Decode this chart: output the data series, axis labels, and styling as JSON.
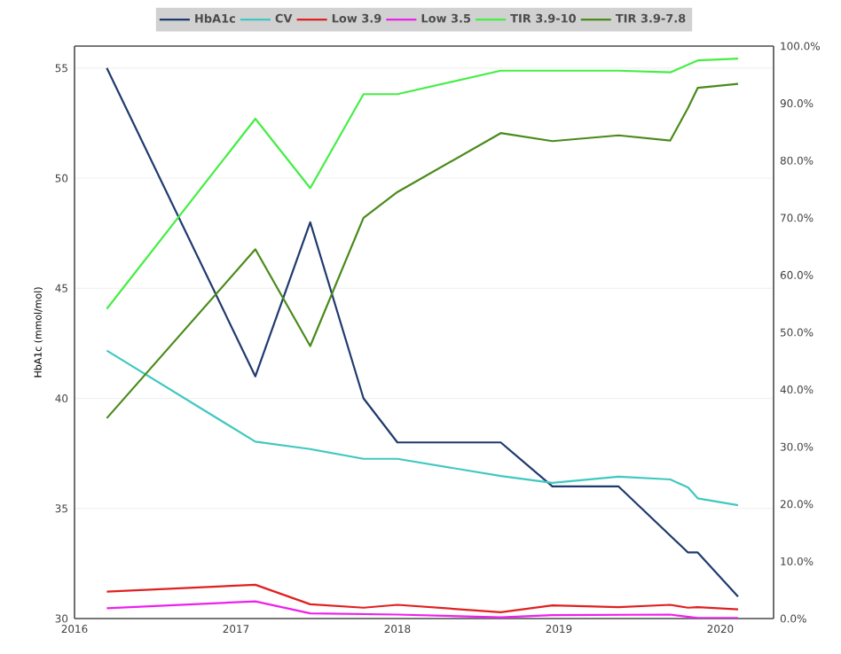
{
  "chart_data": {
    "type": "line",
    "ylabel": "HbA1c (mmol/mol)",
    "xlim": [
      2016,
      2020.33
    ],
    "xticks": [
      2016,
      2017,
      2018,
      2019,
      2020
    ],
    "ylim": [
      30,
      56
    ],
    "yticks": [
      30,
      35,
      40,
      45,
      50,
      55
    ],
    "y2lim": [
      0,
      100
    ],
    "y2ticks": [
      {
        "value": 0,
        "label": "0.0%"
      },
      {
        "value": 10,
        "label": "10.0%"
      },
      {
        "value": 20,
        "label": "20.0%"
      },
      {
        "value": 30,
        "label": "30.0%"
      },
      {
        "value": 40,
        "label": "40.0%"
      },
      {
        "value": 50,
        "label": "50.0%"
      },
      {
        "value": 60,
        "label": "60.0%"
      },
      {
        "value": 70,
        "label": "70.0%"
      },
      {
        "value": 80,
        "label": "80.0%"
      },
      {
        "value": 90,
        "label": "90.0%"
      },
      {
        "value": 100,
        "label": "100.0%"
      }
    ],
    "grid": "y",
    "legend": "top",
    "marker": "none",
    "line_style": "solid",
    "series": [
      {
        "name": "HbA1c",
        "color": "#1f3a6e",
        "x": [
          2016.2,
          2017.12,
          2017.46,
          2017.79,
          2018.0,
          2018.64,
          2018.96,
          2019.37,
          2019.8,
          2019.86,
          2020.11
        ],
        "values": [
          55,
          41,
          48,
          40,
          38,
          38,
          36,
          36,
          33,
          33,
          31
        ]
      },
      {
        "name": "CV",
        "color": "#40c8c0",
        "axis": "y2",
        "x": [
          2016.2,
          2017.12,
          2017.46,
          2017.79,
          2018.0,
          2018.64,
          2018.96,
          2019.37,
          2019.69,
          2019.8,
          2019.86,
          2020.11
        ],
        "values": [
          46.8,
          30.9,
          29.6,
          27.9,
          27.9,
          24.9,
          23.7,
          24.8,
          24.3,
          22.9,
          21.0,
          19.8
        ]
      },
      {
        "name": "Low 3.9",
        "color": "#e02020",
        "axis": "y2",
        "x": [
          2016.2,
          2017.12,
          2017.46,
          2017.79,
          2018.0,
          2018.64,
          2018.96,
          2019.37,
          2019.69,
          2019.8,
          2019.86,
          2020.11
        ],
        "values": [
          4.7,
          5.9,
          2.5,
          1.9,
          2.4,
          1.1,
          2.3,
          2.0,
          2.4,
          1.9,
          2.0,
          1.6
        ]
      },
      {
        "name": "Low 3.5",
        "color": "#ee20ee",
        "axis": "y2",
        "x": [
          2016.2,
          2017.12,
          2017.46,
          2018.0,
          2018.64,
          2018.96,
          2019.69,
          2019.86,
          2020.11
        ],
        "values": [
          1.8,
          3.0,
          0.9,
          0.7,
          0.2,
          0.6,
          0.7,
          0.1,
          0.1
        ]
      },
      {
        "name": "TIR 3.9-10",
        "color": "#44ee44",
        "axis": "y2",
        "x": [
          2016.2,
          2017.12,
          2017.46,
          2017.79,
          2018.0,
          2018.64,
          2019.37,
          2019.69,
          2019.86,
          2020.11
        ],
        "values": [
          54.1,
          87.3,
          75.2,
          91.6,
          91.6,
          95.7,
          95.7,
          95.4,
          97.5,
          97.8
        ]
      },
      {
        "name": "TIR 3.9-7.8",
        "color": "#4a8a1a",
        "axis": "y2",
        "x": [
          2016.2,
          2017.12,
          2017.46,
          2017.79,
          2018.0,
          2018.64,
          2018.96,
          2019.37,
          2019.69,
          2019.8,
          2019.86,
          2020.11
        ],
        "values": [
          35.0,
          64.5,
          47.6,
          70.0,
          74.5,
          84.8,
          83.4,
          84.4,
          83.5,
          89.2,
          92.7,
          93.4
        ]
      }
    ]
  }
}
